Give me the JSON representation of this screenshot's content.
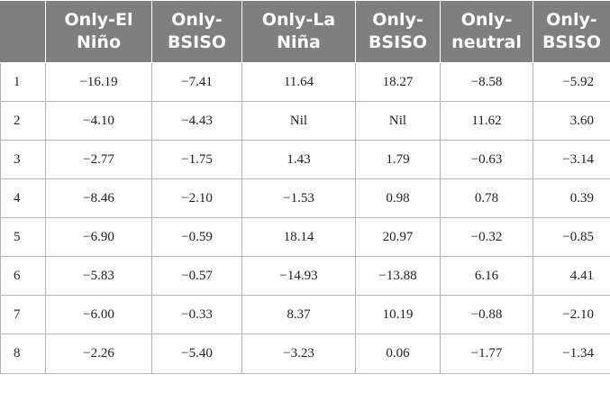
{
  "table": {
    "headers": [
      "",
      "Only-El Niño",
      "Only-BSISO",
      "Only-La Niña",
      "Only-BSISO",
      "Only-neutral",
      "Only-BSISO"
    ],
    "rows": [
      [
        "1",
        "−16.19",
        "−7.41",
        "11.64",
        "18.27",
        "−8.58",
        "−5.92"
      ],
      [
        "2",
        "−4.10",
        "−4.43",
        "Nil",
        "Nil",
        "11.62",
        "3.60"
      ],
      [
        "3",
        "−2.77",
        "−1.75",
        "1.43",
        "1.79",
        "−0.63",
        "−3.14"
      ],
      [
        "4",
        "−8.46",
        "−2.10",
        "−1.53",
        "0.98",
        "0.78",
        "0.39"
      ],
      [
        "5",
        "−6.90",
        "−0.59",
        "18.14",
        "20.97",
        "−0.32",
        "−0.85"
      ],
      [
        "6",
        "−5.83",
        "−0.57",
        "−14.93",
        "−13.88",
        "6.16",
        "4.41"
      ],
      [
        "7",
        "−6.00",
        "−0.33",
        "8.37",
        "10.19",
        "−0.88",
        "−2.10"
      ],
      [
        "8",
        "−2.26",
        "−5.40",
        "−3.23",
        "0.06",
        "−1.77",
        "−1.34"
      ]
    ]
  }
}
